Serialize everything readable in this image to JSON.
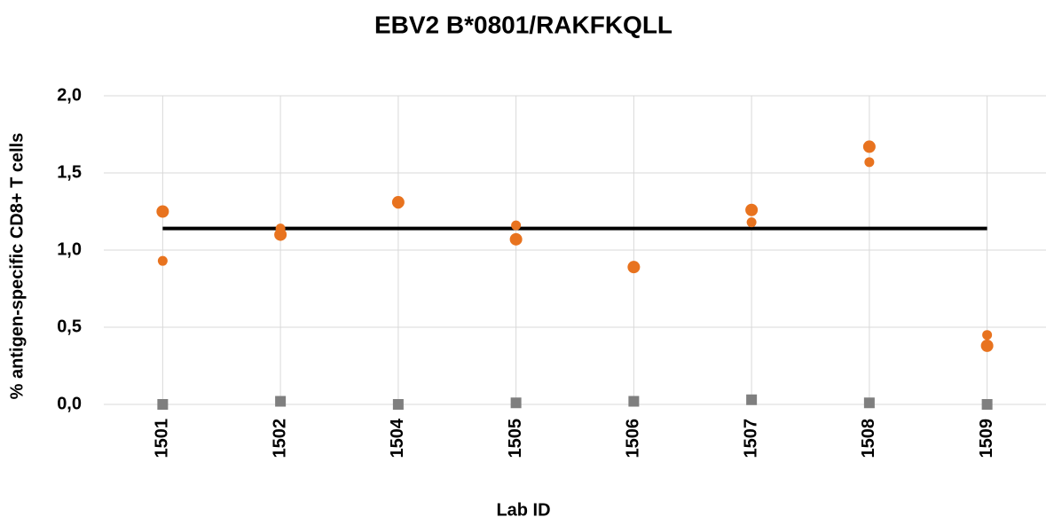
{
  "chart_data": {
    "type": "dot",
    "title": "EBV2 B*0801/RAKFKQLL",
    "x_label": "Lab ID",
    "y_label": "% antigen-specific CD8+ T cells",
    "categories": [
      "1501",
      "1502",
      "1504",
      "1505",
      "1506",
      "1507",
      "1508",
      "1509"
    ],
    "series": [
      {
        "color": "#e8731f",
        "marker": "circle",
        "values": [
          1.25,
          1.1,
          1.31,
          1.07,
          0.89,
          1.26,
          1.67,
          0.38
        ]
      },
      {
        "color": "#e8731f",
        "marker": "circle",
        "values": [
          0.93,
          1.14,
          1.3,
          1.16,
          0.89,
          1.18,
          1.57,
          0.45
        ]
      },
      {
        "color": "#7f7f7f",
        "marker": "square",
        "values": [
          0,
          0.02,
          0,
          0.01,
          0.02,
          0.03,
          0.01,
          0
        ]
      }
    ],
    "mean": 1.14,
    "mean_color": "#000000",
    "ylim": [
      0,
      2
    ],
    "yticks": [
      {
        "value": 0,
        "label": "0,0"
      },
      {
        "value": 0.5,
        "label": "0,5"
      },
      {
        "value": 1,
        "label": "1,0"
      },
      {
        "value": 1.5,
        "label": "1,5"
      },
      {
        "value": 2,
        "label": "2,0"
      }
    ],
    "grid": true
  }
}
